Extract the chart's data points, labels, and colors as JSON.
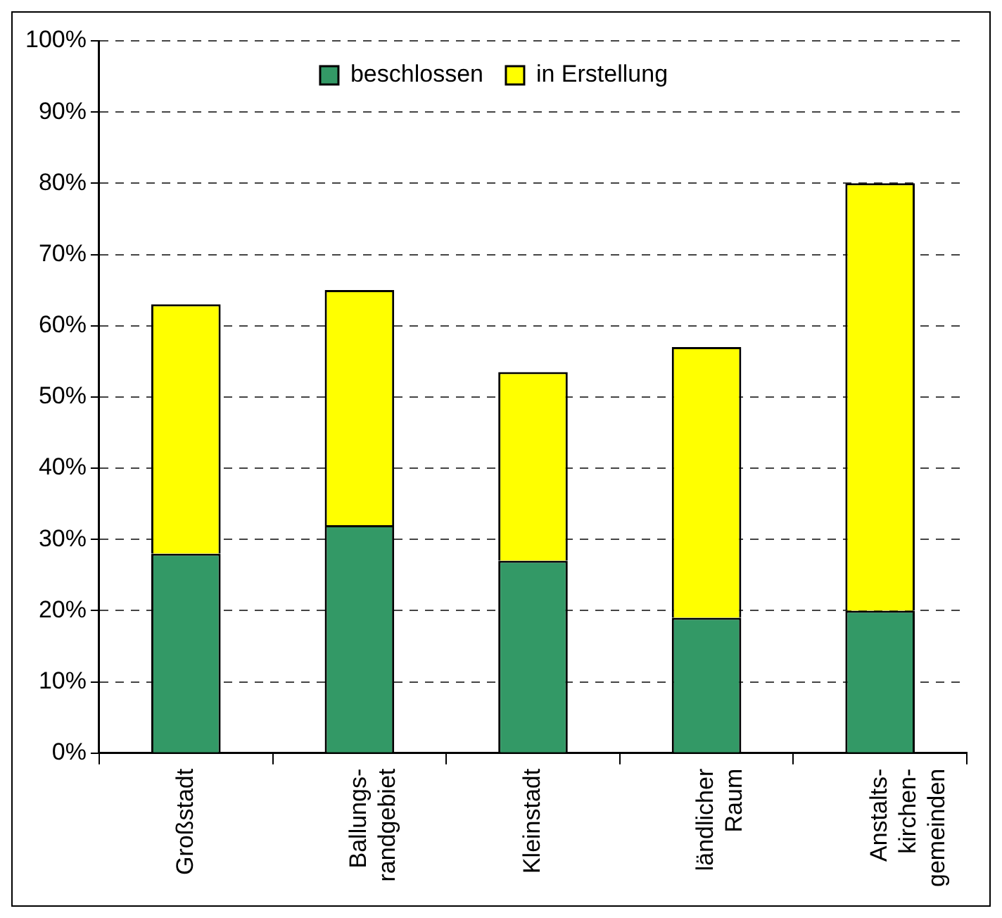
{
  "chart_data": {
    "type": "bar",
    "stacked": true,
    "categories": [
      "Großstadt",
      "Ballungs-\nrandgebiet",
      "Kleinstadt",
      "ländlicher\nRaum",
      "Anstalts-\nkirchen-\ngemeinden"
    ],
    "series": [
      {
        "name": "beschlossen",
        "color": "#339966",
        "values": [
          28,
          32,
          27,
          19,
          20
        ]
      },
      {
        "name": "in Erstellung",
        "color": "#ffff00",
        "values": [
          35,
          33,
          26.5,
          38,
          60
        ]
      }
    ],
    "ylim": [
      0,
      100
    ],
    "yticks": [
      {
        "value": 0,
        "label": "0%"
      },
      {
        "value": 10,
        "label": "10%"
      },
      {
        "value": 20,
        "label": "20%"
      },
      {
        "value": 30,
        "label": "30%"
      },
      {
        "value": 40,
        "label": "40%"
      },
      {
        "value": 50,
        "label": "50%"
      },
      {
        "value": 60,
        "label": "60%"
      },
      {
        "value": 70,
        "label": "70%"
      },
      {
        "value": 80,
        "label": "80%"
      },
      {
        "value": 90,
        "label": "90%"
      },
      {
        "value": 100,
        "label": "100%"
      }
    ],
    "grid": "y",
    "legend": "top"
  }
}
